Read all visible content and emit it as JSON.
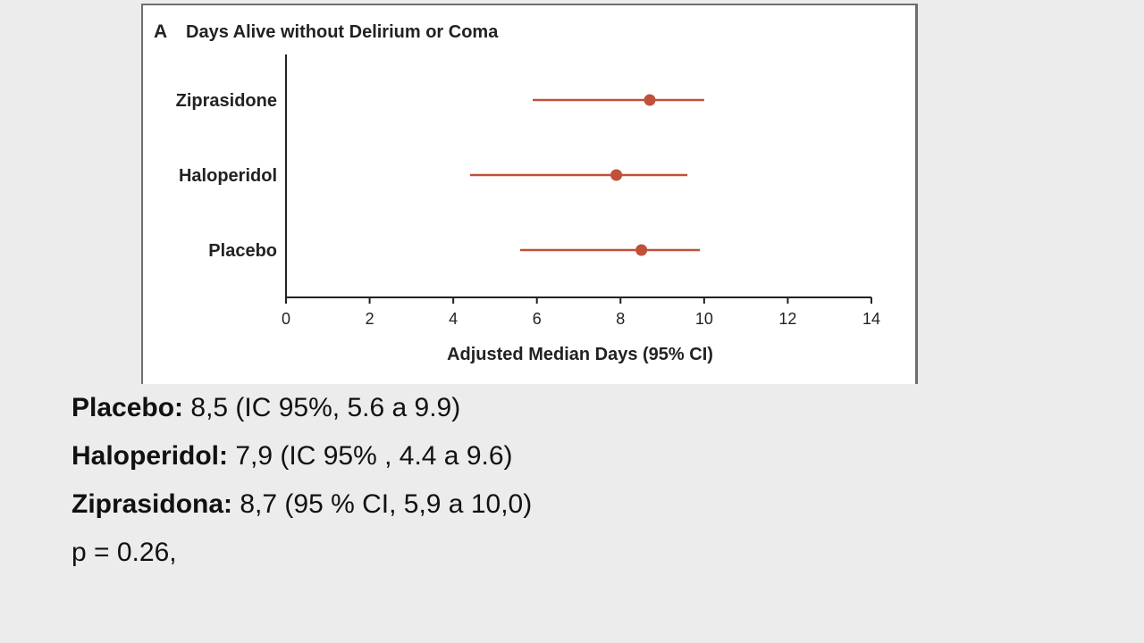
{
  "chart_data": {
    "type": "forest",
    "panel_letter": "A",
    "title": "Days Alive without Delirium or Coma",
    "xlabel": "Adjusted Median Days (95% CI)",
    "xlim": [
      0,
      14
    ],
    "xticks": [
      0,
      2,
      4,
      6,
      8,
      10,
      12,
      14
    ],
    "grid": false,
    "series": [
      {
        "category": "Ziprasidone",
        "median": 8.7,
        "ci_low": 5.9,
        "ci_high": 10.0
      },
      {
        "category": "Haloperidol",
        "median": 7.9,
        "ci_low": 4.4,
        "ci_high": 9.6
      },
      {
        "category": "Placebo",
        "median": 8.5,
        "ci_low": 5.6,
        "ci_high": 9.9
      }
    ],
    "colors": {
      "marker": "#c0503a",
      "axis": "#222222"
    }
  },
  "results": [
    {
      "label": "Placebo:",
      "text": " 8,5 (IC 95%, 5.6 a 9.9)"
    },
    {
      "label": "Haloperidol:",
      "text": " 7,9 (IC 95% , 4.4 a 9.6)"
    },
    {
      "label": "Ziprasidona:",
      "text": " 8,7 (95 % CI, 5,9 a 10,0)"
    }
  ],
  "pvalue": "p = 0.26,"
}
